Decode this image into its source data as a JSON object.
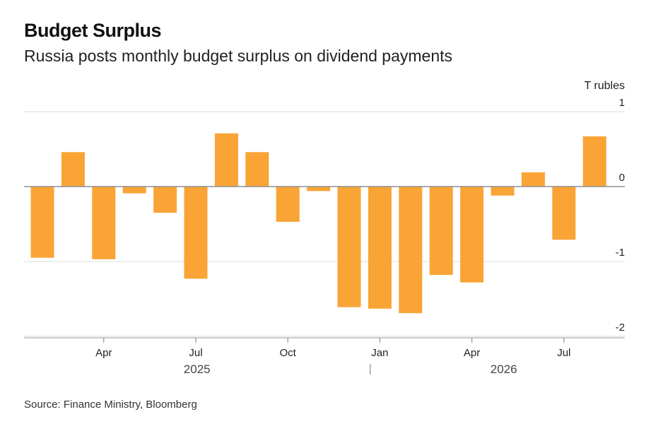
{
  "header": {
    "title": "Budget Surplus",
    "subtitle": "Russia posts monthly budget surplus on dividend payments"
  },
  "footer": {
    "source": "Source: Finance Ministry, Bloomberg"
  },
  "colors": {
    "bar": "#f9a435",
    "grid": "#e3e3e3",
    "zero_line": "#8f8f8f",
    "axis": "#bdbdbd"
  },
  "chart_data": {
    "type": "bar",
    "unit_label": "T rubles",
    "ylim": [
      -2,
      1
    ],
    "yticks": [
      1,
      0,
      -1,
      -2
    ],
    "grid": true,
    "categories": [
      "Feb 2025",
      "Mar 2025",
      "Apr 2025",
      "May 2025",
      "Jun 2025",
      "Jul 2025",
      "Aug 2025",
      "Sep 2025",
      "Oct 2025",
      "Nov 2025",
      "Dec 2025",
      "Jan 2026",
      "Feb 2026",
      "Mar 2026",
      "Apr 2026",
      "May 2026",
      "Jun 2026",
      "Jul 2026",
      "Aug 2026"
    ],
    "values": [
      -0.95,
      0.46,
      -0.97,
      -0.09,
      -0.35,
      -1.23,
      0.71,
      0.46,
      -0.47,
      -0.06,
      -1.61,
      -1.63,
      -1.69,
      -1.18,
      -1.28,
      -0.12,
      0.19,
      -0.71,
      0.67
    ],
    "x_tick_labels": [
      {
        "index": 2,
        "label": "Apr"
      },
      {
        "index": 5,
        "label": "Jul"
      },
      {
        "index": 8,
        "label": "Oct"
      },
      {
        "index": 11,
        "label": "Jan"
      },
      {
        "index": 14,
        "label": "Apr"
      },
      {
        "index": 17,
        "label": "Jul"
      }
    ],
    "years": [
      {
        "label": "2025",
        "center_index": 5.5
      },
      {
        "label": "2026",
        "center_index": 15.5
      }
    ],
    "year_divider_index": 10.5
  }
}
